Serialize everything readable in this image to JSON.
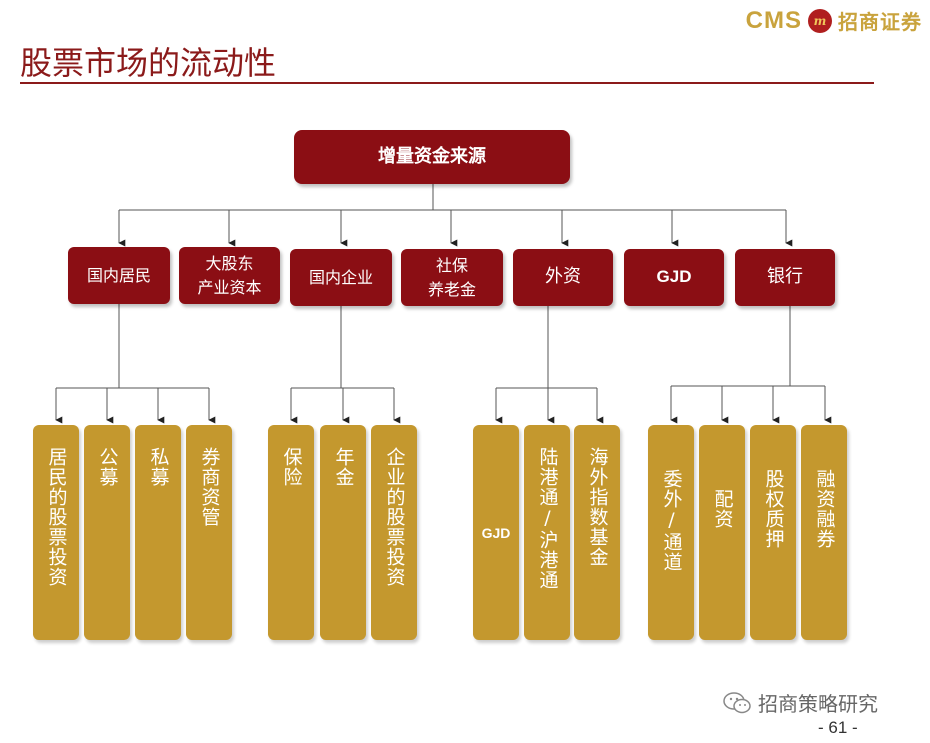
{
  "header": {
    "logo_text": "CMS",
    "logo_badge": "m",
    "logo_company": "招商证券",
    "title": "股票市场的流动性"
  },
  "diagram": {
    "root": "增量资金来源",
    "categories": [
      {
        "lines": [
          "国内居民"
        ]
      },
      {
        "lines": [
          "大股东",
          "产业资本"
        ]
      },
      {
        "lines": [
          "国内企业"
        ]
      },
      {
        "lines": [
          "社保",
          "养老金"
        ]
      },
      {
        "lines": [
          "外资"
        ]
      },
      {
        "lines": [
          "GJD"
        ]
      },
      {
        "lines": [
          "银行"
        ]
      }
    ],
    "leaves": [
      "居民的股票投资",
      "公募",
      "私募",
      "券商资管",
      "保险",
      "年金",
      "企业的股票投资",
      "GJD",
      "陆港通/沪港通",
      "海外指数基金",
      "委外/通道",
      "配资",
      "股权质押",
      "融资融券"
    ]
  },
  "footer": {
    "watermark": "招商策略研究",
    "page_number": "- 61 -"
  }
}
